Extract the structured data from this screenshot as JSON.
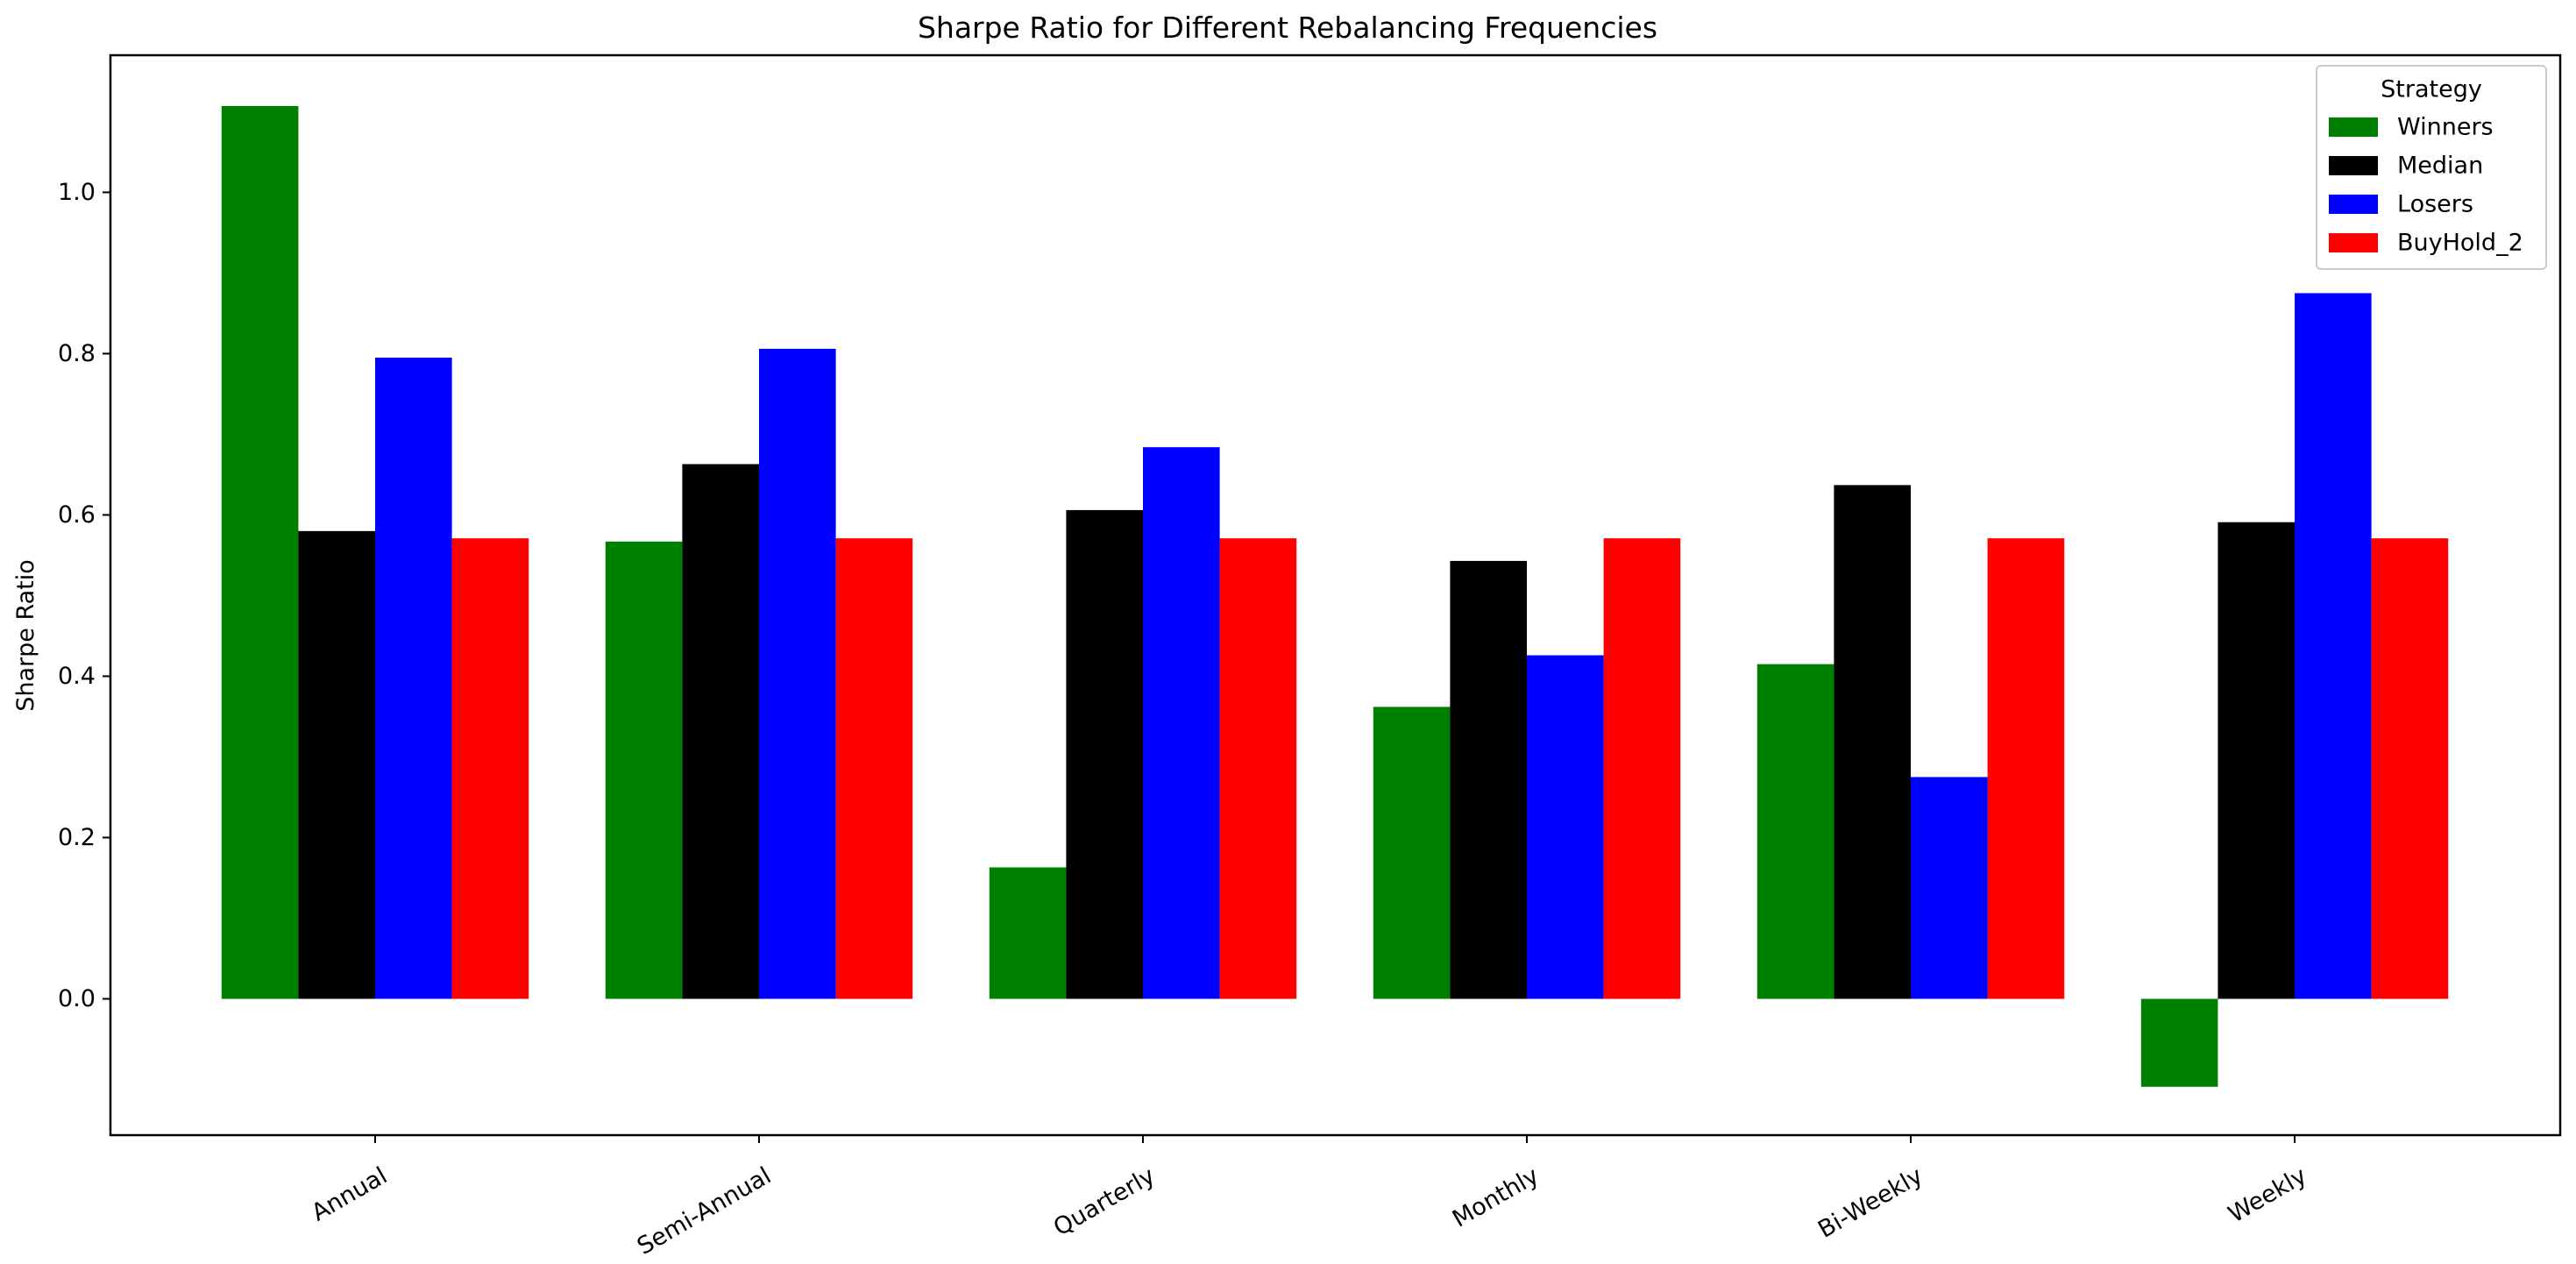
{
  "chart_data": {
    "type": "bar",
    "title": "Sharpe Ratio for Different Rebalancing Frequencies",
    "xlabel": "",
    "ylabel": "Sharpe Ratio",
    "categories": [
      "Annual",
      "Semi-Annual",
      "Quarterly",
      "Monthly",
      "Bi-Weekly",
      "Weekly"
    ],
    "series": [
      {
        "name": "Winners",
        "color": "#008000",
        "values": [
          1.107,
          0.567,
          0.163,
          0.362,
          0.415,
          -0.109
        ]
      },
      {
        "name": "Median",
        "color": "#000000",
        "values": [
          0.58,
          0.663,
          0.606,
          0.543,
          0.637,
          0.591
        ]
      },
      {
        "name": "Losers",
        "color": "#0000ff",
        "values": [
          0.795,
          0.806,
          0.684,
          0.426,
          0.275,
          0.875
        ]
      },
      {
        "name": "BuyHold_2",
        "color": "#ff0000",
        "values": [
          0.571,
          0.571,
          0.571,
          0.571,
          0.571,
          0.571
        ]
      }
    ],
    "yticks": [
      0.0,
      0.2,
      0.4,
      0.6,
      0.8,
      1.0
    ],
    "ytick_labels": [
      "0.0",
      "0.2",
      "0.4",
      "0.6",
      "0.8",
      "1.0"
    ],
    "ylim": [
      -0.169,
      1.17
    ],
    "legend": {
      "title": "Strategy",
      "placement": "top-right"
    },
    "grid": false
  }
}
